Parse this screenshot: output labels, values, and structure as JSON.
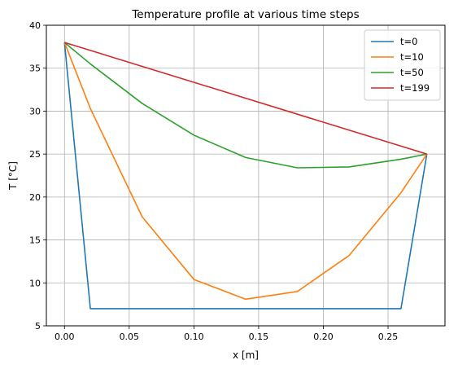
{
  "chart_data": {
    "type": "line",
    "title": "Temperature profile at various time steps",
    "xlabel": "x [m]",
    "ylabel": "T [°C]",
    "xlim": [
      -0.014,
      0.294
    ],
    "ylim": [
      5,
      40
    ],
    "xticks": [
      0.0,
      0.05,
      0.1,
      0.15,
      0.2,
      0.25
    ],
    "xtick_labels": [
      "0.00",
      "0.05",
      "0.10",
      "0.15",
      "0.20",
      "0.25"
    ],
    "yticks": [
      5,
      10,
      15,
      20,
      25,
      30,
      35,
      40
    ],
    "ytick_labels": [
      "5",
      "10",
      "15",
      "20",
      "25",
      "30",
      "35",
      "40"
    ],
    "grid": true,
    "legend_position": "top-right",
    "series": [
      {
        "name": "t=0",
        "color": "#1f77b4",
        "x": [
          0.0,
          0.02,
          0.06,
          0.1,
          0.14,
          0.18,
          0.22,
          0.26,
          0.28
        ],
        "y": [
          38,
          7,
          7,
          7,
          7,
          7,
          7,
          7,
          25
        ]
      },
      {
        "name": "t=10",
        "color": "#ff7f0e",
        "x": [
          0.0,
          0.02,
          0.06,
          0.1,
          0.14,
          0.18,
          0.22,
          0.26,
          0.28
        ],
        "y": [
          38,
          30.3,
          17.7,
          10.4,
          8.1,
          9.0,
          13.2,
          20.5,
          25
        ]
      },
      {
        "name": "t=50",
        "color": "#2ca02c",
        "x": [
          0.0,
          0.02,
          0.06,
          0.1,
          0.14,
          0.18,
          0.22,
          0.26,
          0.28
        ],
        "y": [
          38,
          35.5,
          30.9,
          27.2,
          24.6,
          23.4,
          23.5,
          24.4,
          25
        ]
      },
      {
        "name": "t=199",
        "color": "#d62728",
        "x": [
          0.0,
          0.28
        ],
        "y": [
          38,
          25
        ]
      }
    ]
  }
}
